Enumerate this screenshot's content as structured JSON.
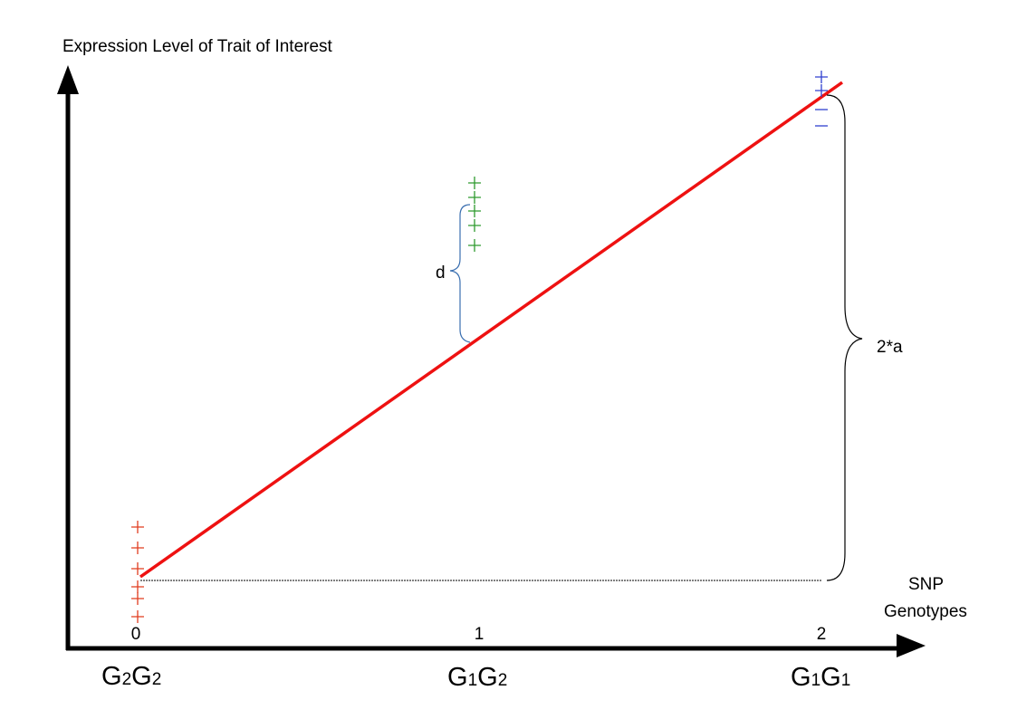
{
  "y_axis_title": "Expression Level of Trait of Interest",
  "x_axis_title_line1": "SNP",
  "x_axis_title_line2": "Genotypes",
  "genotype_codes": [
    "0",
    "1",
    "2"
  ],
  "genotypes": [
    {
      "g1": "G",
      "s1": "2",
      "g2": "G",
      "s2": "2"
    },
    {
      "g1": "G",
      "s1": "1",
      "g2": "G",
      "s2": "2"
    },
    {
      "g1": "G",
      "s1": "1",
      "g2": "G",
      "s2": "1"
    }
  ],
  "dominance_label": "d",
  "additive_label": "2*a",
  "colors": {
    "regression_line": "#ee1111",
    "group_0": "#e03c1f",
    "group_1": "#2e9a2e",
    "group_2": "#3040d0",
    "brace_d": "#3a6fb0",
    "axes": "#000000"
  },
  "icons": {
    "data_point": "plus-marker",
    "axis_arrow": "triangle-arrow"
  }
}
